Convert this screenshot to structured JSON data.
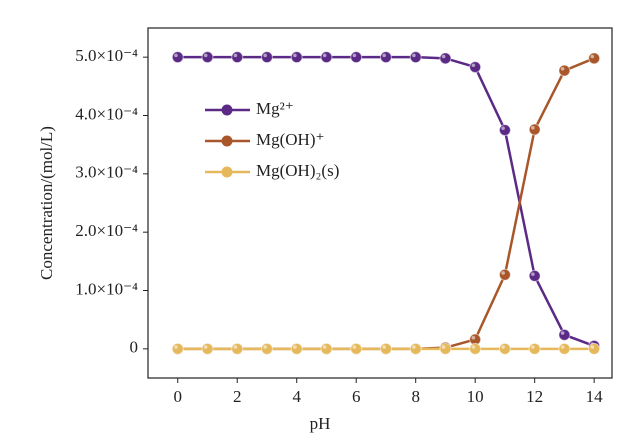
{
  "chart_data": {
    "type": "line",
    "xlabel": "pH",
    "ylabel": "Concentration/(mol/L)",
    "x": [
      0,
      1,
      2,
      3,
      4,
      5,
      6,
      7,
      8,
      9,
      10,
      11,
      12,
      13,
      14
    ],
    "series": [
      {
        "name": "Mg²⁺",
        "color": "#5b2a86",
        "values": [
          0.0005,
          0.0005,
          0.0005,
          0.0005,
          0.0005,
          0.0005,
          0.0005,
          0.0005,
          0.0005,
          0.000498,
          0.000483,
          0.000375,
          0.000125,
          2.4e-05,
          5e-06
        ]
      },
      {
        "name": "Mg(OH)⁺",
        "color": "#a8562a",
        "values": [
          0,
          0,
          0,
          0,
          0,
          0,
          0,
          0,
          0,
          2e-06,
          1.6e-05,
          0.000127,
          0.000376,
          0.000477,
          0.000498
        ]
      },
      {
        "name": "Mg(OH)₂(s)",
        "color": "#e6b85c",
        "values": [
          0,
          0,
          0,
          0,
          0,
          0,
          0,
          0,
          0,
          0,
          0,
          0,
          0,
          0,
          0
        ]
      }
    ],
    "xlim": [
      -1,
      14.6
    ],
    "xticks": [
      0,
      2,
      4,
      6,
      8,
      10,
      12,
      14
    ],
    "ylim": [
      -5e-05,
      0.00055
    ],
    "yticks": [
      0,
      {
        "value": 0.0001,
        "label": "1.0×10⁻⁴"
      },
      {
        "value": 0.0002,
        "label": "2.0×10⁻⁴"
      },
      {
        "value": 0.0003,
        "label": "3.0×10⁻⁴"
      },
      {
        "value": 0.0004,
        "label": "4.0×10⁻⁴"
      },
      {
        "value": 0.0005,
        "label": "5.0×10⁻⁴"
      }
    ],
    "legend": "upper left",
    "grid": false
  }
}
